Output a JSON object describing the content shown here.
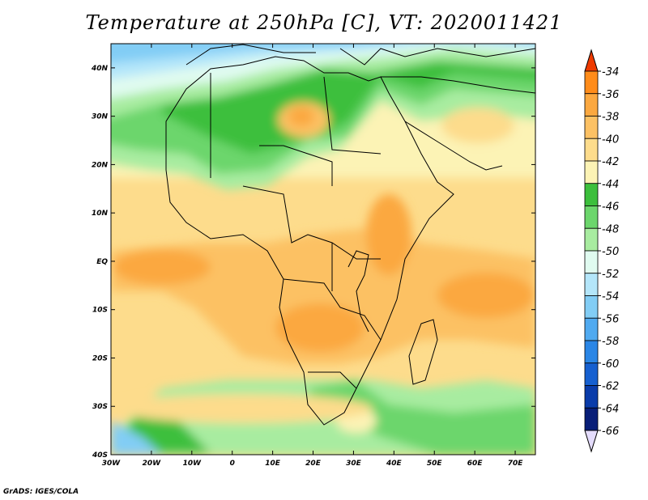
{
  "title": "Temperature at 250hPa [C], VT: 2020011421",
  "credit": "GrADS: IGES/COLA",
  "map": {
    "lon_range": [
      -30,
      75
    ],
    "lat_range": [
      -40,
      45
    ],
    "lon_ticks": [
      {
        "value": -30,
        "label": "30W"
      },
      {
        "value": -20,
        "label": "20W"
      },
      {
        "value": -10,
        "label": "10W"
      },
      {
        "value": 0,
        "label": "0"
      },
      {
        "value": 10,
        "label": "10E"
      },
      {
        "value": 20,
        "label": "20E"
      },
      {
        "value": 30,
        "label": "30E"
      },
      {
        "value": 40,
        "label": "40E"
      },
      {
        "value": 50,
        "label": "50E"
      },
      {
        "value": 60,
        "label": "60E"
      },
      {
        "value": 70,
        "label": "70E"
      }
    ],
    "lat_ticks": [
      {
        "value": 40,
        "label": "40N"
      },
      {
        "value": 30,
        "label": "30N"
      },
      {
        "value": 20,
        "label": "20N"
      },
      {
        "value": 10,
        "label": "10N"
      },
      {
        "value": 0,
        "label": "EQ"
      },
      {
        "value": -10,
        "label": "10S"
      },
      {
        "value": -20,
        "label": "20S"
      },
      {
        "value": -30,
        "label": "30S"
      },
      {
        "value": -40,
        "label": "40S"
      }
    ]
  },
  "colorbar": {
    "levels": [
      {
        "label": "-34",
        "color": "#ff6a00"
      },
      {
        "label": "-36",
        "color": "#ff8c1a"
      },
      {
        "label": "-38",
        "color": "#fba840"
      },
      {
        "label": "-40",
        "color": "#fcc164"
      },
      {
        "label": "-42",
        "color": "#fddc8c"
      },
      {
        "label": "-44",
        "color": "#fcf3b5"
      },
      {
        "label": "-46",
        "color": "#3cbf3c"
      },
      {
        "label": "-48",
        "color": "#6cd66c"
      },
      {
        "label": "-50",
        "color": "#a8eca0"
      },
      {
        "label": "-52",
        "color": "#e0fbf0"
      },
      {
        "label": "-54",
        "color": "#b4e6fa"
      },
      {
        "label": "-56",
        "color": "#82cdf5"
      },
      {
        "label": "-58",
        "color": "#50aaf0"
      },
      {
        "label": "-60",
        "color": "#2a86e6"
      },
      {
        "label": "-62",
        "color": "#1660d0"
      },
      {
        "label": "-64",
        "color": "#0a3caa"
      },
      {
        "label": "-66",
        "color": "#081e78"
      }
    ],
    "top_arrow_color": "#ee3a00",
    "bottom_arrow_color": "#e4dcfc"
  }
}
